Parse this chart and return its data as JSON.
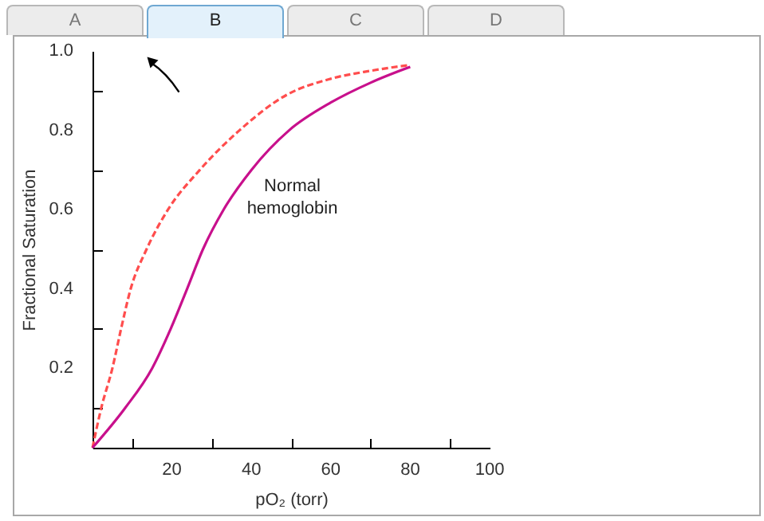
{
  "chart_data": {
    "type": "line",
    "xlabel": "pO₂ (torr)",
    "ylabel": "Fractional Saturation",
    "xlim": [
      0,
      100
    ],
    "ylim": [
      0,
      1.0
    ],
    "xticks": [
      {
        "value": 10,
        "label": null
      },
      20,
      {
        "value": 30,
        "label": null
      },
      40,
      {
        "value": 50,
        "label": null
      },
      60,
      {
        "value": 70,
        "label": null
      },
      80,
      {
        "value": 90,
        "label": null
      },
      100
    ],
    "yticks": [
      {
        "value": 0.1,
        "label": null
      },
      0.2,
      {
        "value": 0.3,
        "label": null
      },
      0.4,
      {
        "value": 0.5,
        "label": null
      },
      0.6,
      {
        "value": 0.7,
        "label": null
      },
      0.8,
      {
        "value": 0.9,
        "label": null
      },
      "1.0"
    ],
    "series": [
      {
        "color": "#ff4d4d",
        "line_style": "dashed",
        "x": [
          0,
          2.2,
          5,
          7.2,
          9.6,
          13.6,
          19,
          27,
          37,
          49,
          60,
          70,
          80
        ],
        "values": [
          0,
          0.1,
          0.2,
          0.3,
          0.4,
          0.5,
          0.6,
          0.7,
          0.8,
          0.89,
          0.93,
          0.95,
          0.965
        ]
      },
      {
        "name": "Normal hemoglobin",
        "color": "#c8108c",
        "line_style": "solid",
        "x": [
          0,
          8.2,
          15,
          19.7,
          23.8,
          27.8,
          33,
          40,
          49.5,
          60,
          70,
          80
        ],
        "values": [
          0,
          0.1,
          0.2,
          0.3,
          0.4,
          0.5,
          0.6,
          0.7,
          0.8,
          0.87,
          0.92,
          0.96
        ]
      }
    ],
    "annotations": [
      "A",
      "B",
      "C",
      "D"
    ],
    "grid": false,
    "marker": "none"
  }
}
